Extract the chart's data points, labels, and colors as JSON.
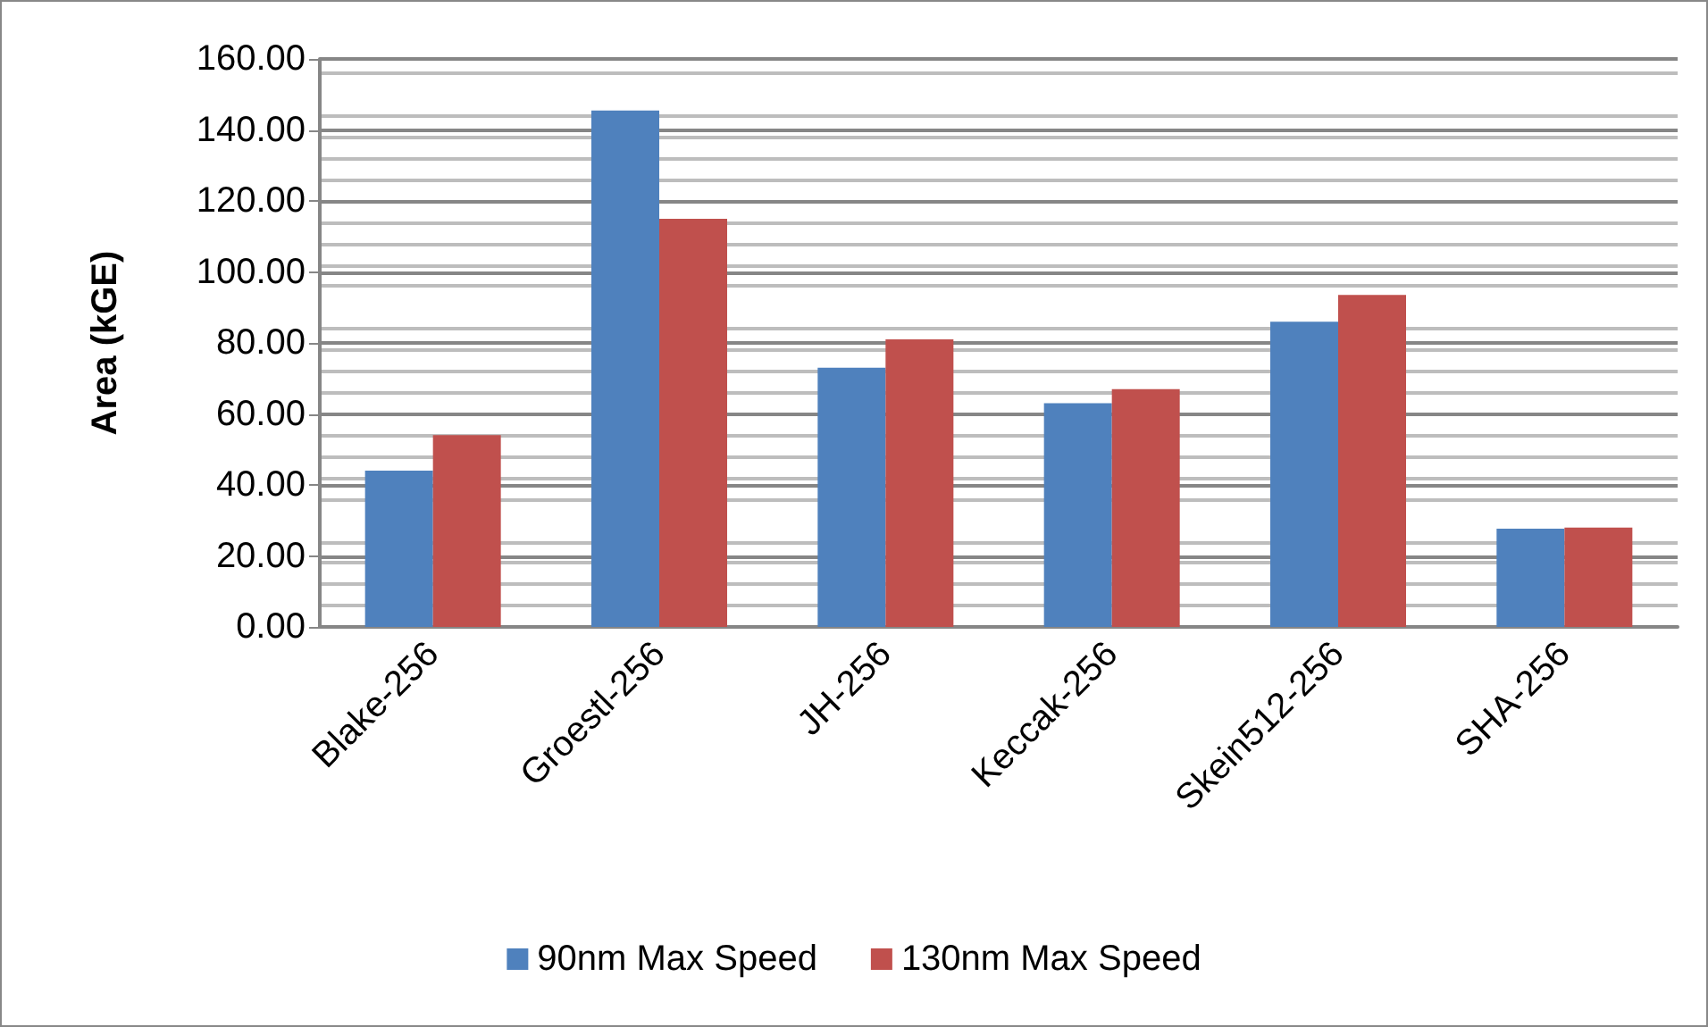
{
  "chart_data": {
    "type": "bar",
    "ylabel": "Area (kGE)",
    "categories": [
      "Blake-256",
      "Groestl-256",
      "JH-256",
      "Keccak-256",
      "Skein512-256",
      "SHA-256"
    ],
    "series": [
      {
        "name": "90nm Max Speed",
        "color": "#4f81bd",
        "values": [
          44,
          145.5,
          73,
          63,
          86,
          27.7
        ]
      },
      {
        "name": "130nm Max Speed",
        "color": "#c0504d",
        "values": [
          54,
          115,
          81,
          67,
          93.5,
          28
        ]
      }
    ],
    "ylim": [
      0,
      160
    ],
    "yticks": [
      {
        "value": 0,
        "label": "0.00"
      },
      {
        "value": 20,
        "label": "20.00"
      },
      {
        "value": 40,
        "label": "40.00"
      },
      {
        "value": 60,
        "label": "60.00"
      },
      {
        "value": 80,
        "label": "80.00"
      },
      {
        "value": 100,
        "label": "100.00"
      },
      {
        "value": 120,
        "label": "120.00"
      },
      {
        "value": 140,
        "label": "140.00"
      },
      {
        "value": 160,
        "label": "160.00"
      }
    ],
    "grid": true,
    "legend": "bottom"
  }
}
